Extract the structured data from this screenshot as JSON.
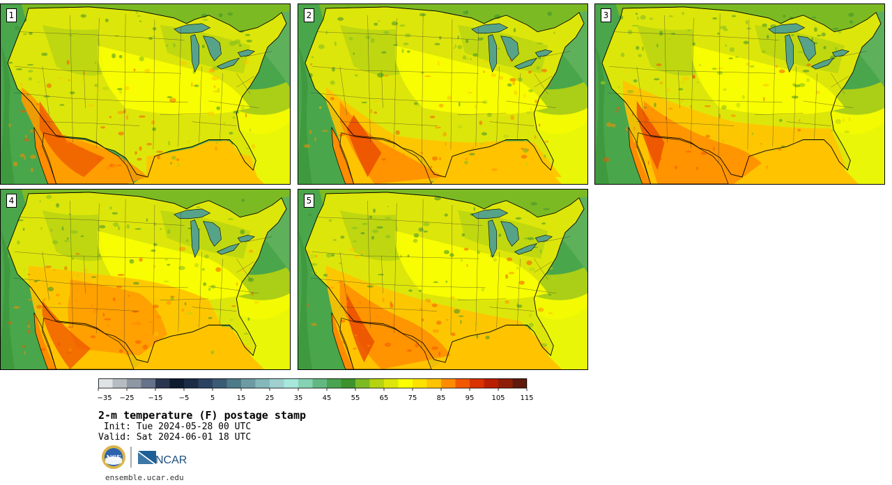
{
  "panels": [
    {
      "label": "1",
      "hot": "sw"
    },
    {
      "label": "2",
      "hot": "south"
    },
    {
      "label": "3",
      "hot": "southwide"
    },
    {
      "label": "4",
      "hot": "plains"
    },
    {
      "label": "5",
      "hot": "southwest"
    }
  ],
  "colorbar": {
    "colors": [
      "#dfe3e6",
      "#b7bcc2",
      "#8e97a3",
      "#66728a",
      "#2a3650",
      "#0f1b2f",
      "#1c2b46",
      "#2c4262",
      "#3b5b75",
      "#4d7b89",
      "#6c9ba3",
      "#84b8ba",
      "#9fd0cf",
      "#a8e7dc",
      "#85d3b2",
      "#63b881",
      "#4aa350",
      "#3d922c",
      "#7cba23",
      "#b6d312",
      "#dde60a",
      "#fbff00",
      "#ffe100",
      "#ffc300",
      "#ff8c00",
      "#f25800",
      "#d83300",
      "#b91f00",
      "#8f1e07",
      "#5f1a0b"
    ],
    "tick_labels": [
      "−35",
      "−25",
      "−15",
      "−5",
      "5",
      "15",
      "25",
      "35",
      "45",
      "55",
      "65",
      "75",
      "85",
      "95",
      "105",
      "115"
    ]
  },
  "title": "2-m temperature (F) postage stamp",
  "init": " Init: Tue 2024-05-28 00 UTC",
  "valid": "Valid: Sat 2024-06-01 18 UTC",
  "logos": {
    "nsf": "NSF",
    "ncar": "NCAR"
  },
  "url": "ensemble.ucar.edu"
}
